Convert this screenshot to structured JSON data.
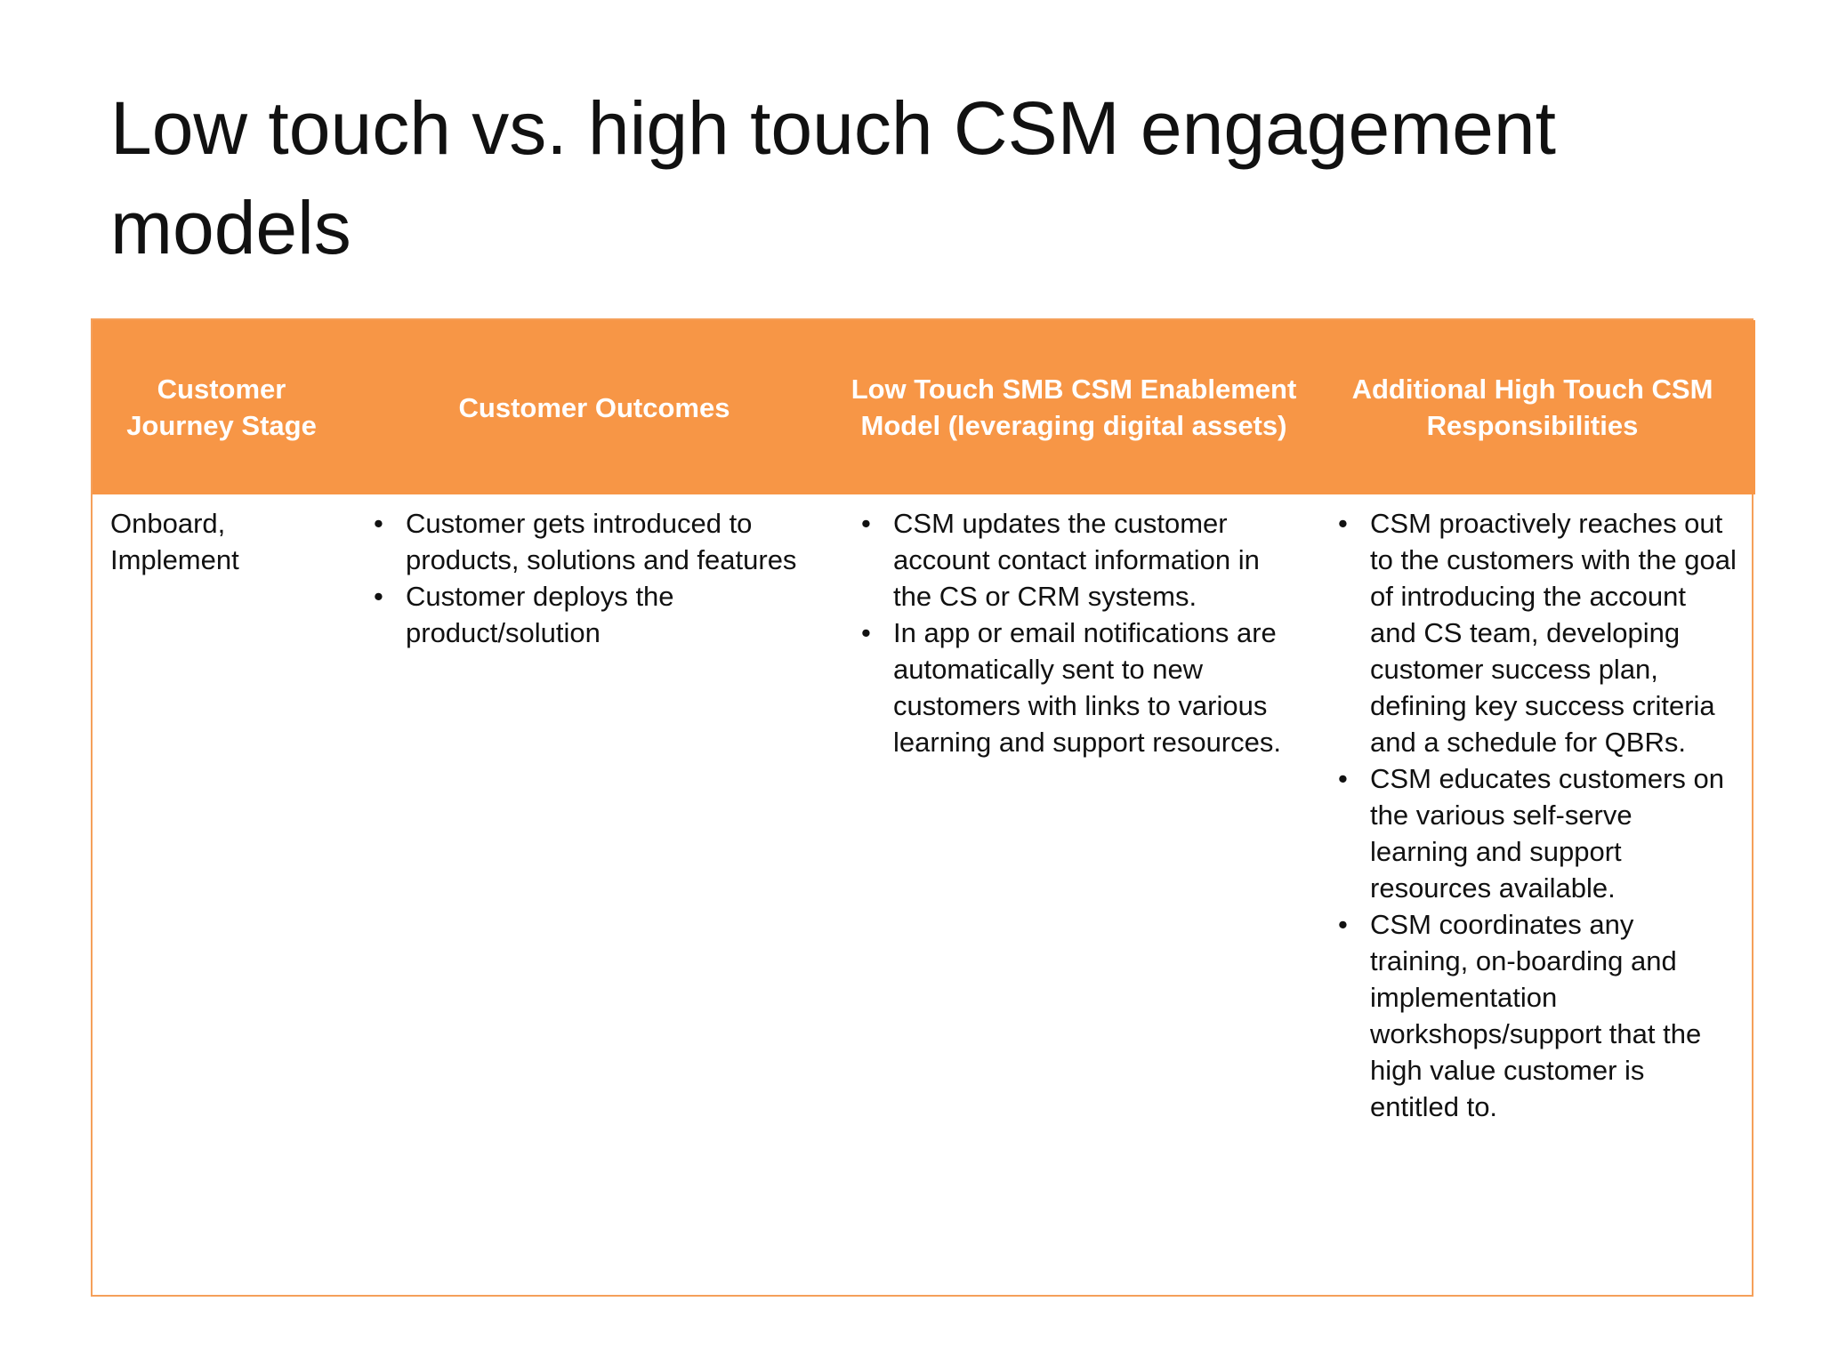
{
  "title": "Low touch vs. high touch CSM engagement models",
  "table": {
    "headers": [
      "Customer Journey Stage",
      "Customer Outcomes",
      "Low Touch SMB CSM Enablement Model (leveraging digital assets)",
      "Additional High Touch CSM Responsibilities"
    ],
    "rows": [
      {
        "stage": "Onboard, Implement",
        "outcomes": [
          "Customer gets introduced to products, solutions and features",
          "Customer deploys the product/solution"
        ],
        "low_touch": [
          "CSM updates the customer account contact information in the CS or CRM systems.",
          "In app or email notifications are automatically sent to new customers with links to various learning and support resources."
        ],
        "high_touch": [
          "CSM proactively reaches out to the customers with the goal of introducing the account and CS team, developing customer success plan, defining key success criteria and a schedule for QBRs.",
          "CSM educates customers on the various self-serve learning and support resources available.",
          "CSM coordinates any training, on-boarding and implementation workshops/support that the high value customer is entitled to."
        ]
      }
    ]
  },
  "colors": {
    "header_bg": "#f79646",
    "header_text": "#ffffff",
    "table_border": "#f5a05a"
  }
}
